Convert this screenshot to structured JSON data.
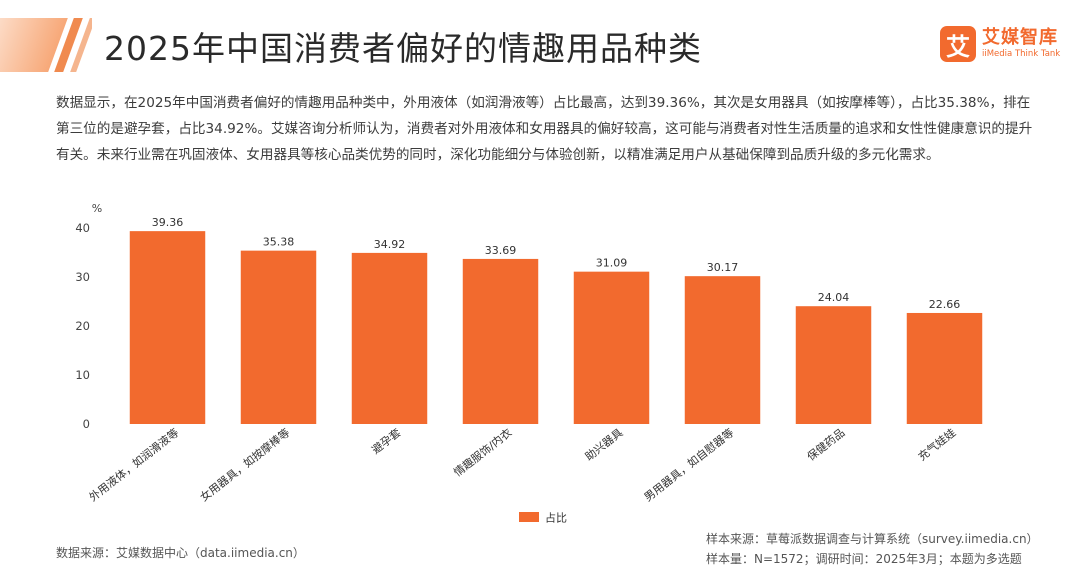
{
  "header": {
    "title": "2025年中国消费者偏好的情趣用品种类",
    "logo_mark": "艾",
    "logo_cn": "艾媒智库",
    "logo_en": "iiMedia Think Tank"
  },
  "summary": "数据显示，在2025年中国消费者偏好的情趣用品种类中，外用液体（如润滑液等）占比最高，达到39.36%，其次是女用器具（如按摩棒等），占比35.38%，排在第三位的是避孕套，占比34.92%。艾媒咨询分析师认为，消费者对外用液体和女用器具的偏好较高，这可能与消费者对性生活质量的追求和女性性健康意识的提升有关。未来行业需在巩固液体、女用器具等核心品类优势的同时，深化功能细分与体验创新，以精准满足用户从基础保障到品质升级的多元化需求。",
  "chart_data": {
    "type": "bar",
    "unit_label": "%",
    "categories": [
      "外用液体，如润滑液等",
      "女用器具，如按摩棒等",
      "避孕套",
      "情趣服饰/内衣",
      "助兴器具",
      "男用器具，如自慰器等",
      "保健药品",
      "充气娃娃"
    ],
    "series": [
      {
        "name": "占比",
        "values": [
          39.36,
          35.38,
          34.92,
          33.69,
          31.09,
          30.17,
          24.04,
          22.66
        ],
        "color": "#f26a2e"
      }
    ],
    "yticks": [
      0,
      10,
      20,
      30,
      40
    ],
    "ylim": [
      0,
      40
    ],
    "legend_position": "bottom-center",
    "grid": false
  },
  "footer": {
    "source_left": "数据来源：艾媒数据中心（data.iimedia.cn）",
    "sample_source": "样本来源：草莓派数据调查与计算系统（survey.iimedia.cn）",
    "sample_size": "样本量：N=1572；调研时间：2025年3月；本题为多选题"
  }
}
